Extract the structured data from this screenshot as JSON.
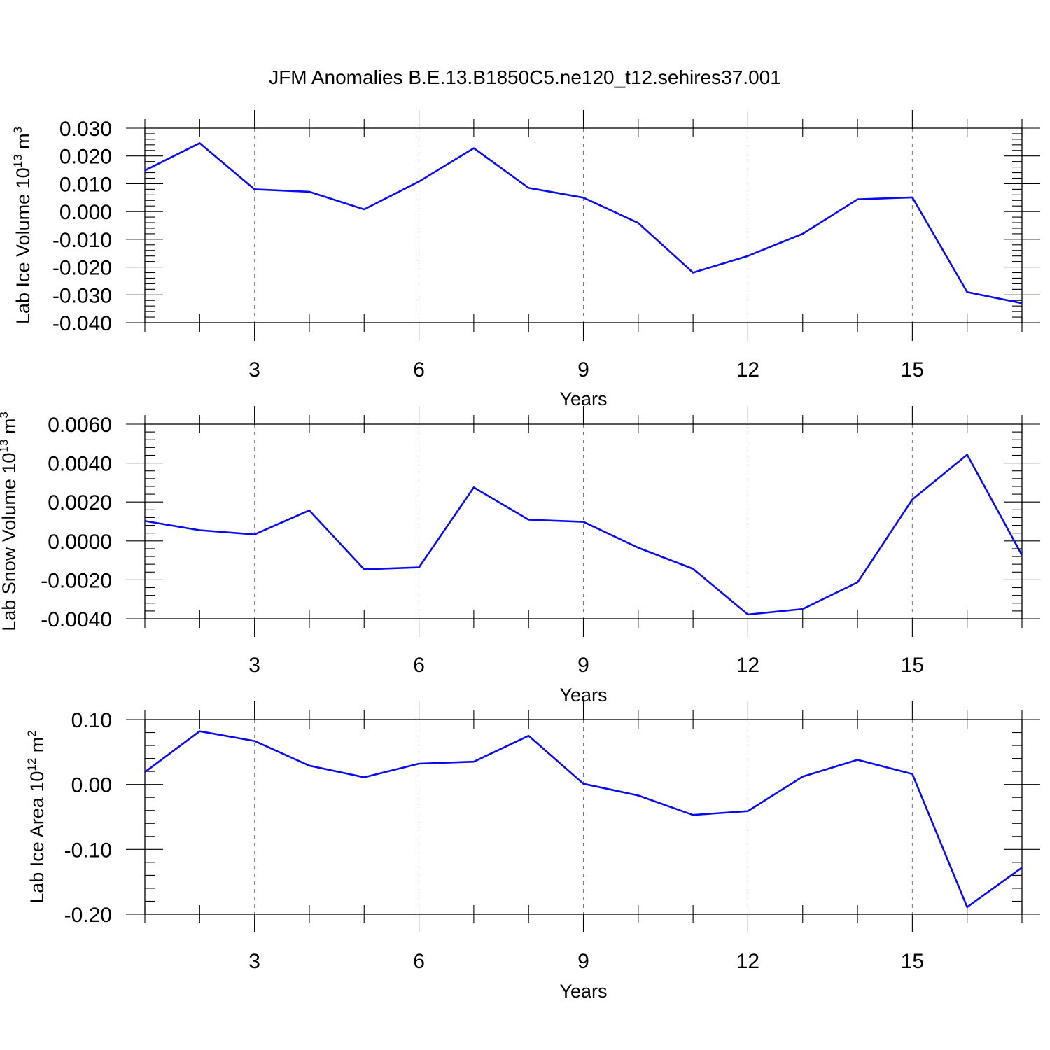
{
  "title": "JFM Anomalies B.E.13.B1850C5.ne120_t12.sehires37.001",
  "line_color": "#0a0af0",
  "chart_data": [
    {
      "type": "line",
      "title": "",
      "xlabel": "Years",
      "ylabel": "Lab Ice Volume 10",
      "ylabel_exp": "13",
      "ylabel_unit": " m",
      "ylabel_unit_exp": "3",
      "xlim": [
        1,
        17
      ],
      "ylim": [
        -0.04,
        0.03
      ],
      "yticks": [
        0.03,
        0.02,
        0.01,
        0.0,
        -0.01,
        -0.02,
        -0.03,
        -0.04
      ],
      "ytick_labels": [
        "0.030",
        "0.020",
        "0.010",
        "0.000",
        "-0.010",
        "-0.020",
        "-0.030",
        "-0.040"
      ],
      "xticks": [
        3,
        6,
        9,
        12,
        15
      ],
      "xtick_labels": [
        "3",
        "6",
        "9",
        "12",
        "15"
      ],
      "grid": "x dashed",
      "x": [
        1,
        2,
        3,
        4,
        5,
        6,
        7,
        8,
        9,
        10,
        11,
        12,
        13,
        14,
        15,
        16,
        17
      ],
      "series": [
        {
          "name": "Lab Ice Volume",
          "values": [
            0.0148,
            0.0246,
            0.008,
            0.0071,
            0.0008,
            0.0108,
            0.0228,
            0.0085,
            0.005,
            -0.0041,
            -0.022,
            -0.016,
            -0.008,
            0.0044,
            0.0051,
            -0.029,
            -0.033
          ]
        }
      ]
    },
    {
      "type": "line",
      "title": "",
      "xlabel": "Years",
      "ylabel": "Lab Snow Volume 10",
      "ylabel_exp": "13",
      "ylabel_unit": " m",
      "ylabel_unit_exp": "3",
      "xlim": [
        1,
        17
      ],
      "ylim": [
        -0.004,
        0.006
      ],
      "yticks": [
        0.006,
        0.004,
        0.002,
        0.0,
        -0.002,
        -0.004
      ],
      "ytick_labels": [
        "0.0060",
        "0.0040",
        "0.0020",
        "0.0000",
        "-0.0020",
        "-0.0040"
      ],
      "xticks": [
        3,
        6,
        9,
        12,
        15
      ],
      "xtick_labels": [
        "3",
        "6",
        "9",
        "12",
        "15"
      ],
      "grid": "x dashed",
      "x": [
        1,
        2,
        3,
        4,
        5,
        6,
        7,
        8,
        9,
        10,
        11,
        12,
        13,
        14,
        15,
        16,
        17
      ],
      "series": [
        {
          "name": "Lab Snow Volume",
          "values": [
            0.00102,
            0.00055,
            0.00033,
            0.00157,
            -0.00146,
            -0.00136,
            0.00275,
            0.00109,
            0.00098,
            -0.00035,
            -0.00143,
            -0.00378,
            -0.0035,
            -0.00213,
            0.00213,
            0.00443,
            -0.00073
          ]
        }
      ]
    },
    {
      "type": "line",
      "title": "",
      "xlabel": "Years",
      "ylabel": "Lab Ice Area 10",
      "ylabel_exp": "12",
      "ylabel_unit": " m",
      "ylabel_unit_exp": "2",
      "xlim": [
        1,
        17
      ],
      "ylim": [
        -0.2,
        0.1
      ],
      "yticks": [
        0.1,
        0.0,
        -0.1,
        -0.2
      ],
      "ytick_labels": [
        "0.10",
        "0.00",
        "-0.10",
        "-0.20"
      ],
      "xticks": [
        3,
        6,
        9,
        12,
        15
      ],
      "xtick_labels": [
        "3",
        "6",
        "9",
        "12",
        "15"
      ],
      "grid": "x dashed",
      "x": [
        1,
        2,
        3,
        4,
        5,
        6,
        7,
        8,
        9,
        10,
        11,
        12,
        13,
        14,
        15,
        16,
        17
      ],
      "series": [
        {
          "name": "Lab Ice Area",
          "values": [
            0.019,
            0.082,
            0.067,
            0.029,
            0.011,
            0.032,
            0.035,
            0.075,
            0.001,
            -0.017,
            -0.047,
            -0.041,
            0.012,
            0.038,
            0.016,
            -0.189,
            -0.128
          ]
        }
      ]
    }
  ]
}
